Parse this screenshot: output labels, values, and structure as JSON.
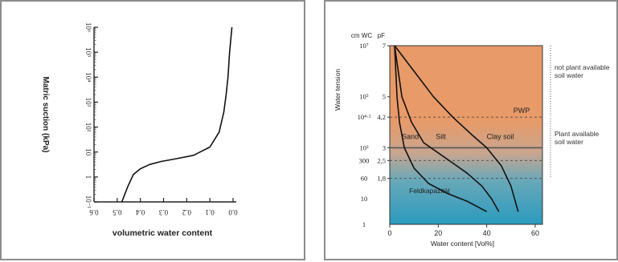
{
  "chart_data": [
    {
      "type": "line",
      "xlabel": "volumetric water content",
      "ylabel": "Matric suction (kPa)",
      "x_ticks": [
        "0.0",
        "0.1",
        "0.2",
        "0.3",
        "0.4",
        "0.5",
        "0.6"
      ],
      "y_ticks": [
        "10⁻¹",
        "1",
        "10",
        "10²",
        "10³",
        "10⁴",
        "10⁵",
        "10⁶"
      ],
      "xlim": [
        0,
        0.6
      ],
      "ylim_log10": [
        -1,
        6
      ],
      "y_scale": "log",
      "series": [
        {
          "x": [
            0.48,
            0.455,
            0.43,
            0.4,
            0.36,
            0.31,
            0.25,
            0.17,
            0.1,
            0.06,
            0.04,
            0.03,
            0.022,
            0.015,
            0.005
          ],
          "y_log10": [
            -1,
            -0.4,
            0.1,
            0.33,
            0.5,
            0.62,
            0.72,
            0.87,
            1.2,
            1.8,
            2.6,
            3.3,
            4.0,
            5.0,
            6.0
          ]
        }
      ],
      "note": "image is rotated 180 degrees"
    },
    {
      "type": "line",
      "xlabel": "Water content [Vol%]",
      "ylabel": "Water tension",
      "y_units_left": "cm WC",
      "y_units_right": "pF",
      "x_ticks": [
        "0",
        "20",
        "40",
        "60"
      ],
      "xlim": [
        0,
        63
      ],
      "y_ticks_cmwc": [
        "1",
        "10",
        "60",
        "300",
        "10³",
        "10⁴·²",
        "10⁵",
        "10⁷"
      ],
      "y_ticks_pf": [
        "1,8",
        "2,5",
        "3",
        "4,2",
        "5",
        "7"
      ],
      "ylim_pf": [
        0,
        7
      ],
      "reference_lines_pf": [
        {
          "pf": 4.2,
          "label": "PWP",
          "style": "dashed"
        },
        {
          "pf": 3,
          "label": "",
          "style": "solid"
        },
        {
          "pf": 2.5,
          "label": "",
          "style": "dashed"
        },
        {
          "pf": 1.8,
          "label": "Feldkapazität",
          "style": "dashed"
        }
      ],
      "series": [
        {
          "name": "Sand",
          "x": [
            2,
            3,
            4,
            6,
            10,
            16,
            24,
            32,
            40
          ],
          "pf": [
            7,
            5,
            4,
            3,
            2.2,
            1.6,
            1.2,
            0.9,
            0.5
          ]
        },
        {
          "name": "Silt",
          "x": [
            2,
            5,
            9,
            14,
            20,
            26,
            32,
            38,
            42,
            45
          ],
          "pf": [
            7,
            5,
            4,
            3.2,
            2.8,
            2.4,
            2.0,
            1.5,
            1.0,
            0.5
          ]
        },
        {
          "name": "Clay soil",
          "x": [
            2,
            10,
            18,
            26,
            34,
            40,
            46,
            50,
            53
          ],
          "pf": [
            7,
            6,
            5,
            4.2,
            3.5,
            3.0,
            2.3,
            1.5,
            0.5
          ]
        }
      ],
      "right_annotations": [
        "not plant available soil water",
        "Plant available soil water"
      ],
      "colors": {
        "top": "#e89a68",
        "mid": "#c9a58f",
        "bottom": "#2a9bbf"
      }
    }
  ]
}
